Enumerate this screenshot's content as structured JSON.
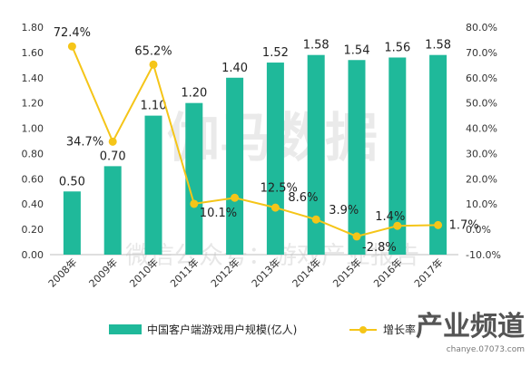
{
  "chart_data": {
    "type": "bar+line",
    "categories": [
      "2008年",
      "2009年",
      "2010年",
      "2011年",
      "2012年",
      "2013年",
      "2014年",
      "2015年",
      "2016年",
      "2017年"
    ],
    "series": [
      {
        "name": "中国客户端游戏用户规模(亿人)",
        "type": "bar",
        "axis": "left",
        "color": "#1fb99a",
        "values": [
          0.5,
          0.7,
          1.1,
          1.2,
          1.4,
          1.52,
          1.58,
          1.54,
          1.56,
          1.58
        ],
        "labels": [
          "0.50",
          "0.70",
          "1.10",
          "1.20",
          "1.40",
          "1.52",
          "1.58",
          "1.54",
          "1.56",
          "1.58"
        ]
      },
      {
        "name": "增长率",
        "type": "line",
        "axis": "right",
        "color": "#f5c518",
        "values": [
          72.4,
          34.7,
          65.2,
          10.1,
          12.5,
          8.6,
          3.9,
          -2.8,
          1.4,
          1.7
        ],
        "labels": [
          "72.4%",
          "34.7%",
          "65.2%",
          "10.1%",
          "12.5%",
          "8.6%",
          "3.9%",
          "-2.8%",
          "1.4%",
          "1.7%"
        ]
      }
    ],
    "y_left": {
      "min": 0,
      "max": 1.8,
      "step": 0.2,
      "ticks": [
        "0.00",
        "0.20",
        "0.40",
        "0.60",
        "0.80",
        "1.00",
        "1.20",
        "1.40",
        "1.60",
        "1.80"
      ]
    },
    "y_right": {
      "min": -10,
      "max": 80,
      "step": 10,
      "ticks": [
        "-10.0%",
        "0.0%",
        "10.0%",
        "20.0%",
        "30.0%",
        "40.0%",
        "50.0%",
        "60.0%",
        "70.0%",
        "80.0%"
      ]
    },
    "grid": false,
    "legend_position": "bottom",
    "watermark": [
      "伽马数据",
      "微信公众号：游戏产业报告"
    ],
    "corner_logo": [
      "产业频道",
      "chanye.07073.com"
    ]
  }
}
